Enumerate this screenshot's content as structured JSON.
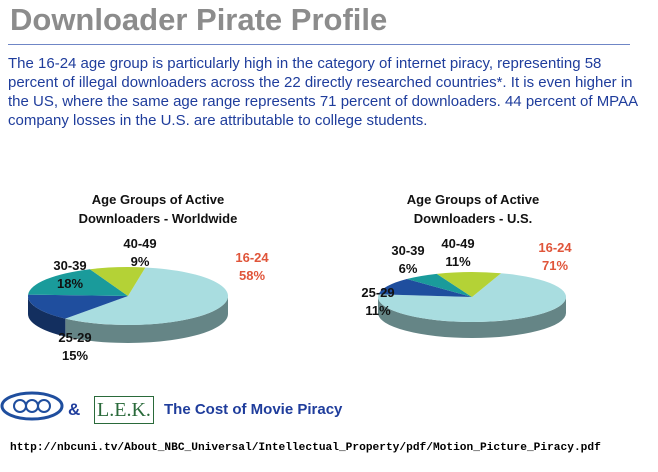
{
  "header": {
    "title": "Downloader Pirate Profile"
  },
  "body": {
    "text": "The 16-24 age group is particularly high in the category of internet piracy, representing 58 percent of illegal downloaders across the 22 directly researched countries*. It is even higher in the US, where the same age range represents 71 percent of downloaders. 44 percent of MPAA company losses in the U.S. are attributable to college students."
  },
  "chart_data": [
    {
      "type": "pie",
      "title": "Age Groups of Active Downloaders - Worldwide",
      "categories": [
        "16-24",
        "25-29",
        "30-39",
        "40-49"
      ],
      "values": [
        58,
        15,
        18,
        9
      ],
      "value_labels": [
        "58%",
        "15%",
        "18%",
        "9%"
      ],
      "colors": [
        "#a9dde0",
        "#1f4e9e",
        "#1a9b9b",
        "#b4d236"
      ]
    },
    {
      "type": "pie",
      "title": "Age Groups of Active Downloaders - U.S.",
      "categories": [
        "16-24",
        "25-29",
        "30-39",
        "40-49"
      ],
      "values": [
        71,
        11,
        6,
        11
      ],
      "value_labels": [
        "71%",
        "11%",
        "6%",
        "11%"
      ],
      "colors": [
        "#a9dde0",
        "#1f4e9e",
        "#1a9b9b",
        "#b4d236"
      ]
    }
  ],
  "footer": {
    "amp": "&",
    "lek": "L.E.K.",
    "tagline": "The Cost of Movie Piracy",
    "url": "http://nbcuni.tv/About_NBC_Universal/Intellectual_Property/pdf/Motion_Picture_Piracy.pdf"
  }
}
